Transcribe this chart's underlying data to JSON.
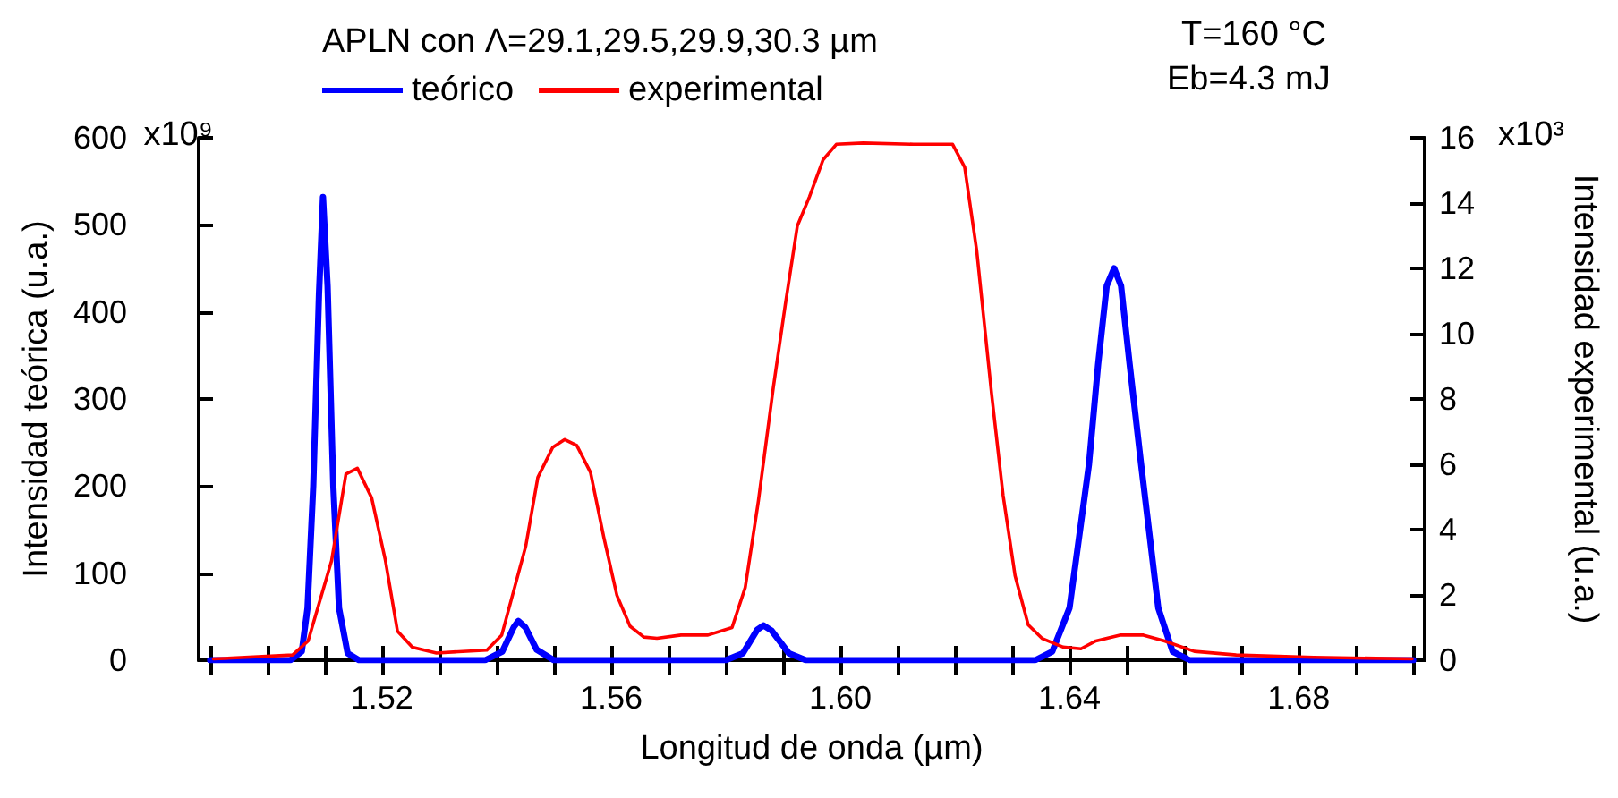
{
  "chart_data": {
    "type": "line",
    "title": "APLN con Λ=29.1,29.5,29.9,30.3 µm",
    "annotations": [
      "T=160 °C",
      "Eb=4.3 mJ",
      "x10⁹",
      "x10³"
    ],
    "xlabel": "Longitud de onda (µm)",
    "ylabel": "Intensidad teórica (u.a.)",
    "y2label": "Intensidad experimental (u.a.)",
    "xlim": [
      1.488,
      1.702
    ],
    "xticks": [
      {
        "value": 1.49,
        "label": null
      },
      {
        "value": 1.5,
        "label": null
      },
      {
        "value": 1.51,
        "label": null
      },
      1.52,
      {
        "value": 1.53,
        "label": null
      },
      {
        "value": 1.54,
        "label": null
      },
      {
        "value": 1.55,
        "label": null
      },
      1.56,
      {
        "value": 1.57,
        "label": null
      },
      {
        "value": 1.58,
        "label": null
      },
      {
        "value": 1.59,
        "label": null
      },
      {
        "value": 1.6,
        "label": "1.60"
      },
      {
        "value": 1.61,
        "label": null
      },
      {
        "value": 1.62,
        "label": null
      },
      {
        "value": 1.63,
        "label": null
      },
      1.64,
      {
        "value": 1.65,
        "label": null
      },
      {
        "value": 1.66,
        "label": null
      },
      {
        "value": 1.67,
        "label": null
      },
      1.68,
      {
        "value": 1.69,
        "label": null
      },
      {
        "value": 1.7,
        "label": null
      }
    ],
    "ylim": [
      0,
      600
    ],
    "yticks": [
      0,
      100,
      200,
      300,
      400,
      500,
      600
    ],
    "y2lim": [
      0,
      16
    ],
    "y2ticks": [
      0,
      2,
      4,
      6,
      8,
      10,
      12,
      14,
      16
    ],
    "grid": false,
    "legend": "top",
    "marker": "none",
    "series": [
      {
        "name": "teórico",
        "color": "#0000ff",
        "x": [
          1.49,
          1.504,
          1.506,
          1.507,
          1.508,
          1.509,
          1.5097,
          1.5105,
          1.5115,
          1.5125,
          1.514,
          1.516,
          1.538,
          1.541,
          1.543,
          1.5438,
          1.545,
          1.547,
          1.55,
          1.58,
          1.583,
          1.5855,
          1.5866,
          1.588,
          1.591,
          1.594,
          1.634,
          1.637,
          1.64,
          1.6434,
          1.645,
          1.6465,
          1.6478,
          1.649,
          1.6505,
          1.6525,
          1.6555,
          1.658,
          1.661,
          1.7
        ],
        "values": [
          0,
          0,
          10,
          60,
          200,
          420,
          532,
          430,
          200,
          60,
          8,
          0,
          0,
          10,
          38,
          45,
          38,
          12,
          0,
          0,
          8,
          35,
          40,
          34,
          8,
          0,
          0,
          10,
          60,
          225,
          340,
          430,
          450,
          430,
          340,
          225,
          60,
          10,
          0,
          0
        ]
      },
      {
        "name": "experimental",
        "color": "#ff0000",
        "axis": "y2",
        "x": [
          1.4906,
          1.5044,
          1.5071,
          1.5112,
          1.5137,
          1.5157,
          1.5182,
          1.5206,
          1.5227,
          1.5253,
          1.5295,
          1.5383,
          1.5409,
          1.5451,
          1.5472,
          1.5498,
          1.5519,
          1.554,
          1.5564,
          1.5587,
          1.561,
          1.5633,
          1.5657,
          1.568,
          1.5722,
          1.5769,
          1.5811,
          1.5834,
          1.5857,
          1.5883,
          1.5904,
          1.5925,
          1.5946,
          1.597,
          1.5993,
          1.604,
          1.6128,
          1.6196,
          1.6217,
          1.6238,
          1.6264,
          1.6284,
          1.6305,
          1.6328,
          1.6352,
          1.6389,
          1.642,
          1.6446,
          1.6488,
          1.6529,
          1.6566,
          1.6618,
          1.6691,
          1.6826,
          1.6998
        ],
        "values": [
          0.04,
          0.16,
          0.59,
          3.05,
          5.7,
          5.88,
          4.97,
          3.05,
          0.89,
          0.4,
          0.22,
          0.31,
          0.77,
          3.5,
          5.6,
          6.52,
          6.76,
          6.58,
          5.75,
          3.78,
          1.99,
          1.04,
          0.71,
          0.67,
          0.77,
          0.77,
          1.0,
          2.23,
          4.88,
          8.35,
          10.9,
          13.3,
          14.19,
          15.33,
          15.8,
          15.84,
          15.8,
          15.8,
          15.1,
          12.55,
          8.16,
          5.06,
          2.59,
          1.08,
          0.67,
          0.4,
          0.35,
          0.59,
          0.77,
          0.77,
          0.59,
          0.27,
          0.16,
          0.09,
          0.04
        ]
      }
    ]
  }
}
